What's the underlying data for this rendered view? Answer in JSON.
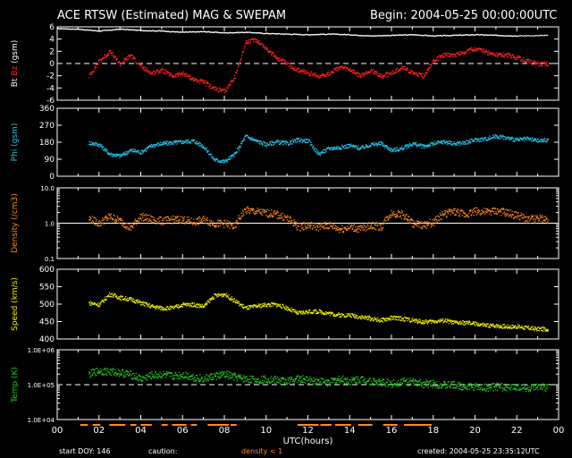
{
  "header": {
    "title": "ACE RTSW (Estimated) MAG & SWEPAM",
    "begin": "Begin: 2004-05-25 00:00:00UTC"
  },
  "footer": {
    "start_doy": "start DOY: 146",
    "caution": "caution:",
    "density_note": "density < 1",
    "created": "created: 2004-05-25 23:35:12UTC"
  },
  "colors": {
    "background": "#000000",
    "foreground": "#ffffff",
    "bt": "#ffffff",
    "bz": "#ff2020",
    "phi": "#22c8ee",
    "density": "#ff8a1a",
    "speed": "#f0f000",
    "temp": "#22cc22",
    "caution": "#ff8a1a"
  },
  "chart_data": [
    {
      "type": "line",
      "panel": "bt-bz",
      "ylabel_parts": [
        "Bt",
        "Bz",
        "(gsm)"
      ],
      "ylim": [
        -6,
        6
      ],
      "yticks": [
        6,
        4,
        2,
        0,
        -2,
        -4,
        -6
      ],
      "reference_line": 0,
      "series": [
        {
          "name": "Bt",
          "color": "#ffffff",
          "x": [
            0,
            1,
            2,
            3,
            4,
            5,
            6,
            7,
            8,
            9,
            10,
            11,
            12,
            13,
            14,
            15,
            16,
            17,
            18,
            19,
            20,
            21,
            22,
            23.5
          ],
          "values": [
            5.8,
            5.7,
            5.4,
            5.7,
            5.5,
            5.4,
            5.2,
            5.3,
            5.1,
            5.2,
            5.0,
            4.9,
            4.8,
            4.9,
            4.8,
            4.6,
            4.7,
            4.8,
            4.6,
            4.7,
            4.8,
            4.7,
            4.6,
            4.7
          ]
        },
        {
          "name": "Bz",
          "color": "#ff2020",
          "x": [
            1.5,
            2,
            2.5,
            3,
            3.5,
            4,
            4.5,
            5,
            5.5,
            6,
            6.5,
            7,
            7.5,
            8,
            8.5,
            9,
            9.5,
            10,
            10.5,
            11,
            11.5,
            12,
            12.5,
            13,
            13.5,
            14,
            14.5,
            15,
            15.5,
            16,
            16.5,
            17,
            17.5,
            18,
            18.5,
            19,
            19.5,
            20,
            20.5,
            21,
            21.5,
            22,
            22.5,
            23,
            23.5
          ],
          "values": [
            -2,
            0.5,
            2,
            0,
            1.5,
            -0.5,
            -1.5,
            -1,
            -2,
            -1.5,
            -2.5,
            -3,
            -4,
            -4.5,
            -2,
            3.5,
            4,
            2.5,
            1,
            0,
            -1,
            -1.5,
            -2,
            -1.5,
            -0.5,
            -1,
            -2,
            -1,
            -2,
            -1.5,
            -0.5,
            -1.5,
            -2,
            0.5,
            1.5,
            1.5,
            2,
            2.5,
            2,
            1.5,
            1.5,
            1,
            0.5,
            0,
            0
          ]
        }
      ]
    },
    {
      "type": "scatter",
      "panel": "phi",
      "ylabel": "Phi (gsm)",
      "ylim": [
        0,
        360
      ],
      "yticks": [
        360,
        270,
        180,
        90,
        0
      ],
      "series": [
        {
          "name": "Phi",
          "color": "#22c8ee",
          "x": [
            1.5,
            2,
            2.5,
            3,
            3.5,
            4,
            4.5,
            5,
            5.5,
            6,
            6.5,
            7,
            7.5,
            8,
            8.5,
            9,
            9.5,
            10,
            10.5,
            11,
            11.5,
            12,
            12.5,
            13,
            13.5,
            14,
            14.5,
            15,
            15.5,
            16,
            16.5,
            17,
            17.5,
            18,
            18.5,
            19,
            19.5,
            20,
            20.5,
            21,
            21.5,
            22,
            22.5,
            23,
            23.5
          ],
          "values": [
            180,
            170,
            120,
            110,
            140,
            130,
            165,
            175,
            180,
            185,
            190,
            160,
            90,
            80,
            120,
            215,
            190,
            170,
            185,
            175,
            195,
            190,
            120,
            150,
            155,
            165,
            150,
            170,
            175,
            140,
            150,
            175,
            160,
            175,
            185,
            175,
            180,
            195,
            200,
            215,
            205,
            195,
            200,
            190,
            195
          ]
        }
      ]
    },
    {
      "type": "scatter",
      "panel": "density",
      "ylabel": "Density (/cm3)",
      "scale": "log",
      "ylim": [
        0.1,
        10
      ],
      "yticks": [
        "10.0",
        "1.0",
        "0.1"
      ],
      "reference_line": 1.0,
      "series": [
        {
          "name": "Density",
          "color": "#ff8a1a",
          "x": [
            1.5,
            2,
            2.5,
            3,
            3.5,
            4,
            4.5,
            5,
            5.5,
            6,
            6.5,
            7,
            7.5,
            8,
            8.5,
            9,
            9.5,
            10,
            10.5,
            11,
            11.5,
            12,
            12.5,
            13,
            13.5,
            14,
            14.5,
            15,
            15.5,
            16,
            16.5,
            17,
            17.5,
            18,
            18.5,
            19,
            19.5,
            20,
            20.5,
            21,
            21.5,
            22,
            22.5,
            23,
            23.5
          ],
          "values": [
            1.4,
            1.0,
            1.6,
            1.2,
            0.7,
            1.6,
            1.3,
            1.2,
            1.3,
            1.3,
            1.1,
            1.3,
            1.0,
            1.0,
            0.8,
            2.4,
            2.2,
            2.0,
            1.8,
            1.4,
            0.8,
            0.9,
            0.8,
            0.9,
            0.7,
            0.8,
            0.7,
            0.9,
            0.8,
            2.0,
            1.8,
            1.0,
            0.9,
            1.1,
            1.9,
            2.2,
            1.8,
            2.3,
            2.1,
            2.3,
            2.0,
            1.7,
            1.3,
            1.4,
            1.3
          ]
        }
      ]
    },
    {
      "type": "scatter",
      "panel": "speed",
      "ylabel": "Speed (km/s)",
      "ylim": [
        400,
        600
      ],
      "yticks": [
        600,
        550,
        500,
        450,
        400
      ],
      "series": [
        {
          "name": "Speed",
          "color": "#f0f000",
          "x": [
            1.5,
            2,
            2.5,
            3,
            3.5,
            4,
            4.5,
            5,
            5.5,
            6,
            6.5,
            7,
            7.5,
            8,
            8.5,
            9,
            9.5,
            10,
            10.5,
            11,
            11.5,
            12,
            12.5,
            13,
            13.5,
            14,
            14.5,
            15,
            15.5,
            16,
            16.5,
            17,
            17.5,
            18,
            18.5,
            19,
            19.5,
            20,
            20.5,
            21,
            21.5,
            22,
            22.5,
            23,
            23.5
          ],
          "values": [
            505,
            500,
            530,
            520,
            515,
            505,
            495,
            490,
            490,
            500,
            500,
            495,
            525,
            530,
            510,
            490,
            495,
            500,
            500,
            490,
            475,
            480,
            480,
            475,
            470,
            470,
            465,
            460,
            455,
            462,
            460,
            455,
            450,
            452,
            455,
            448,
            448,
            445,
            440,
            440,
            437,
            437,
            433,
            430,
            430
          ]
        }
      ]
    },
    {
      "type": "scatter",
      "panel": "temp",
      "ylabel": "Temp (K)",
      "scale": "log",
      "ylim": [
        10000,
        1000000
      ],
      "yticks": [
        "1.0E+06",
        "1.0E+05",
        "1.0E+04"
      ],
      "reference_line": 100000,
      "series": [
        {
          "name": "Temp",
          "color": "#22cc22",
          "x": [
            1.5,
            2,
            2.5,
            3,
            3.5,
            4,
            4.5,
            5,
            5.5,
            6,
            6.5,
            7,
            7.5,
            8,
            8.5,
            9,
            9.5,
            10,
            10.5,
            11,
            11.5,
            12,
            12.5,
            13,
            13.5,
            14,
            14.5,
            15,
            15.5,
            16,
            16.5,
            17,
            17.5,
            18,
            18.5,
            19,
            19.5,
            20,
            20.5,
            21,
            21.5,
            22,
            22.5,
            23,
            23.5
          ],
          "values": [
            200000,
            260000,
            240000,
            230000,
            200000,
            150000,
            190000,
            200000,
            180000,
            200000,
            170000,
            150000,
            180000,
            200000,
            170000,
            150000,
            140000,
            150000,
            140000,
            130000,
            150000,
            140000,
            130000,
            120000,
            150000,
            130000,
            150000,
            130000,
            120000,
            110000,
            130000,
            120000,
            110000,
            110000,
            100000,
            100000,
            90000,
            90000,
            85000,
            90000,
            85000,
            90000,
            80000,
            85000,
            85000
          ]
        }
      ]
    }
  ],
  "x_axis": {
    "label": "UTC(hours)",
    "ticks": [
      "00",
      "02",
      "04",
      "06",
      "08",
      "10",
      "12",
      "14",
      "16",
      "18",
      "20",
      "22",
      "00"
    ]
  },
  "caution_segments": [
    [
      1.1,
      1.4
    ],
    [
      1.7,
      2.0
    ],
    [
      2.5,
      3.2
    ],
    [
      3.5,
      3.7
    ],
    [
      4.0,
      4.4
    ],
    [
      5.0,
      5.2
    ],
    [
      5.5,
      6.1
    ],
    [
      6.4,
      6.6
    ],
    [
      7.2,
      8.1
    ],
    [
      8.3,
      8.5
    ],
    [
      11.5,
      12.4
    ],
    [
      12.6,
      13.0
    ],
    [
      13.3,
      14.0
    ],
    [
      14.4,
      15.0
    ],
    [
      15.6,
      16.2
    ],
    [
      16.6,
      17.8
    ]
  ]
}
